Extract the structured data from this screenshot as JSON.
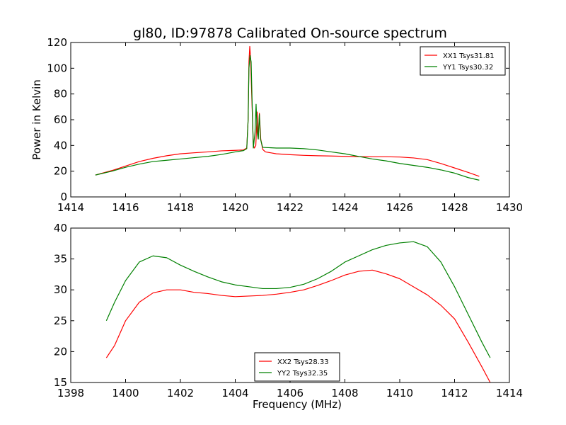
{
  "title": "gl80, ID:97878 Calibrated On-source spectrum",
  "chart_data": [
    {
      "type": "line",
      "xlabel": "",
      "ylabel": "Power in Kelvin",
      "xlim": [
        1414,
        1430
      ],
      "ylim": [
        0,
        120
      ],
      "xticks": [
        1414,
        1416,
        1418,
        1420,
        1422,
        1424,
        1426,
        1428,
        1430
      ],
      "yticks": [
        0,
        20,
        40,
        60,
        80,
        100,
        120
      ],
      "grid": false,
      "legend_position": "top-right",
      "series": [
        {
          "name": "XX1 Tsys31.81",
          "color": "#ff0000",
          "points": [
            [
              1414.9,
              17
            ],
            [
              1415.5,
              20.5
            ],
            [
              1416,
              24
            ],
            [
              1416.5,
              27.5
            ],
            [
              1417,
              30
            ],
            [
              1417.5,
              32
            ],
            [
              1418,
              33.5
            ],
            [
              1418.5,
              34.3
            ],
            [
              1419,
              35
            ],
            [
              1419.5,
              35.8
            ],
            [
              1420,
              36.2
            ],
            [
              1420.3,
              36.5
            ],
            [
              1420.42,
              38
            ],
            [
              1420.47,
              60
            ],
            [
              1420.5,
              105
            ],
            [
              1420.53,
              117
            ],
            [
              1420.56,
              108
            ],
            [
              1420.6,
              80
            ],
            [
              1420.66,
              40
            ],
            [
              1420.7,
              38
            ],
            [
              1420.75,
              40
            ],
            [
              1420.8,
              66
            ],
            [
              1420.84,
              45
            ],
            [
              1420.88,
              65
            ],
            [
              1420.93,
              45
            ],
            [
              1421,
              37
            ],
            [
              1421.1,
              35
            ],
            [
              1421.5,
              33.5
            ],
            [
              1422,
              32.8
            ],
            [
              1422.5,
              32.3
            ],
            [
              1423,
              32
            ],
            [
              1423.5,
              31.8
            ],
            [
              1424,
              31.5
            ],
            [
              1424.5,
              31.3
            ],
            [
              1425,
              31.2
            ],
            [
              1425.5,
              31.2
            ],
            [
              1426,
              31
            ],
            [
              1426.5,
              30.3
            ],
            [
              1427,
              29
            ],
            [
              1427.5,
              26
            ],
            [
              1428,
              22.5
            ],
            [
              1428.5,
              19
            ],
            [
              1428.9,
              16
            ]
          ]
        },
        {
          "name": "YY1 Tsys30.32",
          "color": "#008000",
          "points": [
            [
              1414.9,
              17
            ],
            [
              1415.5,
              20
            ],
            [
              1416,
              23
            ],
            [
              1416.5,
              25.5
            ],
            [
              1417,
              27.5
            ],
            [
              1417.5,
              28.5
            ],
            [
              1418,
              29.5
            ],
            [
              1418.5,
              30.5
            ],
            [
              1419,
              31.5
            ],
            [
              1419.5,
              33
            ],
            [
              1420,
              35
            ],
            [
              1420.3,
              36
            ],
            [
              1420.42,
              37.5
            ],
            [
              1420.47,
              60
            ],
            [
              1420.5,
              100
            ],
            [
              1420.54,
              110
            ],
            [
              1420.58,
              105
            ],
            [
              1420.62,
              70
            ],
            [
              1420.66,
              38
            ],
            [
              1420.72,
              50
            ],
            [
              1420.76,
              72
            ],
            [
              1420.8,
              50
            ],
            [
              1420.84,
              45
            ],
            [
              1420.88,
              64
            ],
            [
              1420.92,
              45
            ],
            [
              1421,
              38.5
            ],
            [
              1421.5,
              38
            ],
            [
              1422,
              38
            ],
            [
              1422.5,
              37.5
            ],
            [
              1423,
              36.5
            ],
            [
              1423.5,
              35
            ],
            [
              1424,
              33.5
            ],
            [
              1424.5,
              31.5
            ],
            [
              1425,
              29.5
            ],
            [
              1425.5,
              28
            ],
            [
              1426,
              26
            ],
            [
              1426.5,
              24.5
            ],
            [
              1427,
              23
            ],
            [
              1427.5,
              21
            ],
            [
              1428,
              18.5
            ],
            [
              1428.5,
              15
            ],
            [
              1428.9,
              13
            ]
          ]
        }
      ]
    },
    {
      "type": "line",
      "xlabel": "Frequency (MHz)",
      "ylabel": "",
      "xlim": [
        1398,
        1414
      ],
      "ylim": [
        15,
        40
      ],
      "xticks": [
        1398,
        1400,
        1402,
        1404,
        1406,
        1408,
        1410,
        1412,
        1414
      ],
      "yticks": [
        15,
        20,
        25,
        30,
        35,
        40
      ],
      "grid": false,
      "legend_position": "bottom-center",
      "series": [
        {
          "name": "XX2 Tsys28.33",
          "color": "#ff0000",
          "points": [
            [
              1399.3,
              19
            ],
            [
              1399.6,
              21
            ],
            [
              1400,
              25
            ],
            [
              1400.5,
              28
            ],
            [
              1401,
              29.5
            ],
            [
              1401.5,
              30
            ],
            [
              1402,
              30
            ],
            [
              1402.5,
              29.6
            ],
            [
              1403,
              29.4
            ],
            [
              1403.5,
              29.1
            ],
            [
              1404,
              28.9
            ],
            [
              1404.5,
              29
            ],
            [
              1405,
              29.1
            ],
            [
              1405.5,
              29.3
            ],
            [
              1406,
              29.6
            ],
            [
              1406.5,
              30
            ],
            [
              1407,
              30.7
            ],
            [
              1407.5,
              31.5
            ],
            [
              1408,
              32.4
            ],
            [
              1408.5,
              33
            ],
            [
              1409,
              33.2
            ],
            [
              1409.5,
              32.6
            ],
            [
              1410,
              31.8
            ],
            [
              1410.5,
              30.5
            ],
            [
              1411,
              29.2
            ],
            [
              1411.5,
              27.5
            ],
            [
              1412,
              25.3
            ],
            [
              1412.5,
              21.5
            ],
            [
              1413,
              17.5
            ],
            [
              1413.3,
              15
            ]
          ]
        },
        {
          "name": "YY2 Tsys32.35",
          "color": "#008000",
          "points": [
            [
              1399.3,
              25
            ],
            [
              1399.6,
              28
            ],
            [
              1400,
              31.5
            ],
            [
              1400.5,
              34.5
            ],
            [
              1401,
              35.5
            ],
            [
              1401.5,
              35.2
            ],
            [
              1402,
              34
            ],
            [
              1402.5,
              33
            ],
            [
              1403,
              32.1
            ],
            [
              1403.5,
              31.3
            ],
            [
              1404,
              30.8
            ],
            [
              1404.5,
              30.5
            ],
            [
              1405,
              30.2
            ],
            [
              1405.5,
              30.2
            ],
            [
              1406,
              30.4
            ],
            [
              1406.5,
              30.9
            ],
            [
              1407,
              31.8
            ],
            [
              1407.5,
              33
            ],
            [
              1408,
              34.5
            ],
            [
              1408.5,
              35.5
            ],
            [
              1409,
              36.5
            ],
            [
              1409.5,
              37.2
            ],
            [
              1410,
              37.6
            ],
            [
              1410.5,
              37.8
            ],
            [
              1411,
              37
            ],
            [
              1411.5,
              34.5
            ],
            [
              1412,
              30.5
            ],
            [
              1412.5,
              26
            ],
            [
              1413,
              21.5
            ],
            [
              1413.3,
              19
            ]
          ]
        }
      ]
    }
  ]
}
